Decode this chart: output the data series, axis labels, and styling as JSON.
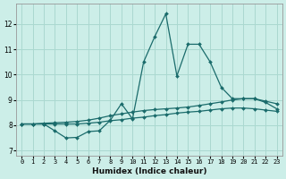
{
  "xlabel": "Humidex (Indice chaleur)",
  "bg_color": "#cceee8",
  "grid_color": "#aad8d0",
  "line_color": "#1a6b6b",
  "xlim": [
    -0.5,
    23.5
  ],
  "ylim": [
    6.8,
    12.8
  ],
  "yticks": [
    7,
    8,
    9,
    10,
    11,
    12
  ],
  "xtick_labels": [
    "0",
    "1",
    "2",
    "3",
    "4",
    "5",
    "6",
    "7",
    "8",
    "9",
    "10",
    "11",
    "12",
    "13",
    "14",
    "15",
    "16",
    "17",
    "18",
    "19",
    "20",
    "21",
    "22",
    "23"
  ],
  "line1_x": [
    0,
    1,
    2,
    3,
    4,
    5,
    6,
    7,
    8,
    9,
    10,
    11,
    12,
    13,
    14,
    15,
    16,
    17,
    18,
    19,
    20,
    21,
    22,
    23
  ],
  "line1_y": [
    8.05,
    8.05,
    8.05,
    7.78,
    7.5,
    7.52,
    7.75,
    7.78,
    8.2,
    8.85,
    8.25,
    10.5,
    11.5,
    12.4,
    9.95,
    11.2,
    11.2,
    10.5,
    9.5,
    9.05,
    9.05,
    9.05,
    8.9,
    8.65
  ],
  "line2_x": [
    0,
    1,
    2,
    3,
    4,
    5,
    6,
    7,
    8,
    9,
    10,
    11,
    12,
    13,
    14,
    15,
    16,
    17,
    18,
    19,
    20,
    21,
    22,
    23
  ],
  "line2_y": [
    8.05,
    8.05,
    8.08,
    8.1,
    8.12,
    8.15,
    8.2,
    8.28,
    8.38,
    8.45,
    8.52,
    8.58,
    8.62,
    8.65,
    8.68,
    8.72,
    8.78,
    8.85,
    8.92,
    9.0,
    9.05,
    9.05,
    8.95,
    8.85
  ],
  "line3_x": [
    0,
    1,
    2,
    3,
    4,
    5,
    6,
    7,
    8,
    9,
    10,
    11,
    12,
    13,
    14,
    15,
    16,
    17,
    18,
    19,
    20,
    21,
    22,
    23
  ],
  "line3_y": [
    8.05,
    8.05,
    8.05,
    8.05,
    8.05,
    8.05,
    8.08,
    8.12,
    8.18,
    8.22,
    8.28,
    8.32,
    8.38,
    8.42,
    8.48,
    8.52,
    8.55,
    8.6,
    8.65,
    8.68,
    8.68,
    8.65,
    8.6,
    8.55
  ],
  "marker": "D",
  "markersize": 2.0,
  "linewidth": 0.9,
  "tick_fontsize": 5.0,
  "xlabel_fontsize": 6.5
}
